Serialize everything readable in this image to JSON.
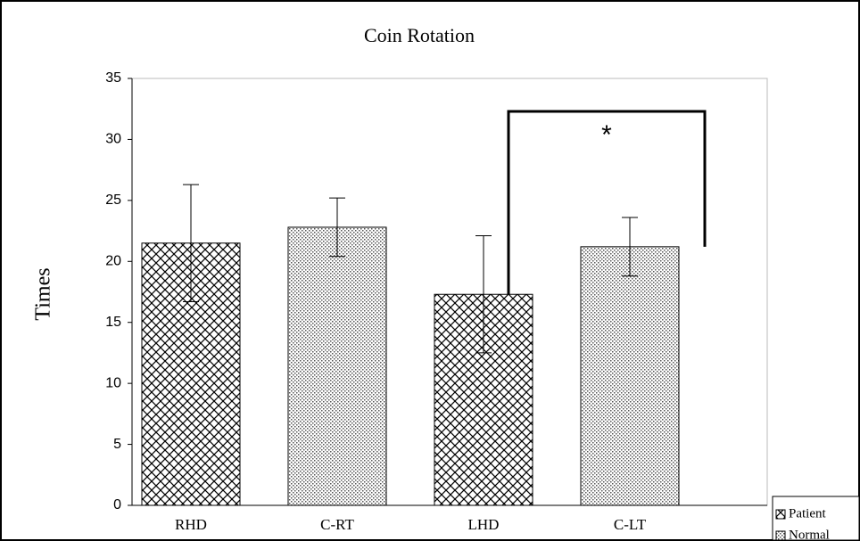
{
  "chart_data": {
    "type": "bar",
    "title": "Coin Rotation",
    "y_label": "Times",
    "categories": [
      "RHD",
      "C-RT",
      "LHD",
      "C-LT"
    ],
    "series": [
      {
        "name": "Patient",
        "color": "#000000",
        "pattern": "crosshatch",
        "values": [
          21.5,
          null,
          17.3,
          null
        ],
        "errors": [
          4.8,
          null,
          4.8,
          null
        ]
      },
      {
        "name": "Normal",
        "color": "#000000",
        "pattern": "dots",
        "values": [
          null,
          22.8,
          null,
          21.2
        ],
        "errors": [
          null,
          2.4,
          null,
          2.4
        ]
      }
    ],
    "ylim": [
      0,
      35
    ],
    "yticks": [
      0,
      5,
      10,
      15,
      20,
      25,
      30,
      35
    ],
    "grid": false,
    "legend": "lower right",
    "annotation": {
      "text": "*",
      "from": 2,
      "to": 3,
      "y": 32.3
    }
  }
}
